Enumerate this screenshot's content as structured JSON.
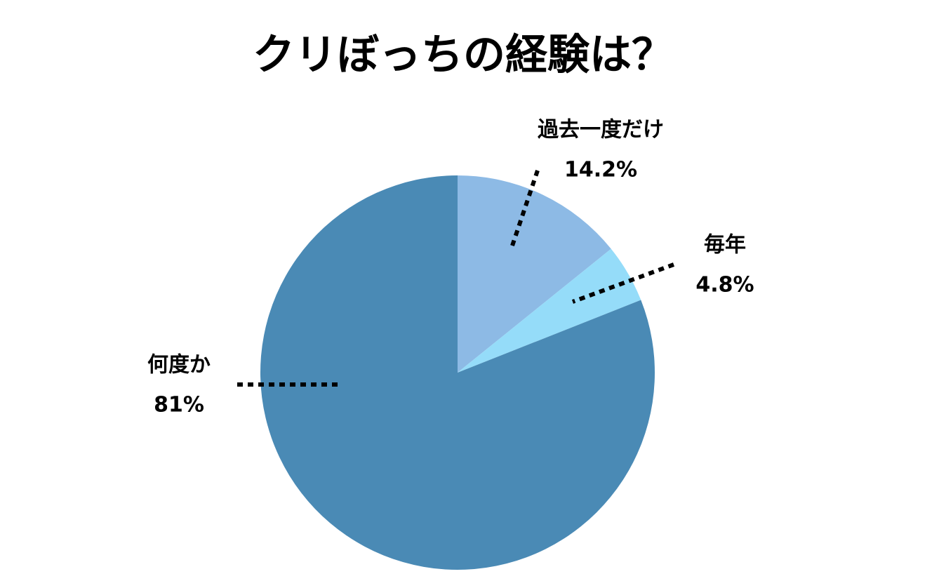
{
  "chart_data": {
    "type": "pie",
    "title": "クリぼっちの経験は？",
    "categories": [
      "過去一度だけ",
      "毎年",
      "何度か"
    ],
    "values": [
      14.2,
      4.8,
      81
    ],
    "value_labels": [
      "14.2%",
      "4.8%",
      "81%"
    ],
    "colors": [
      "#8dbae5",
      "#95dcf9",
      "#4a8ab5"
    ]
  }
}
